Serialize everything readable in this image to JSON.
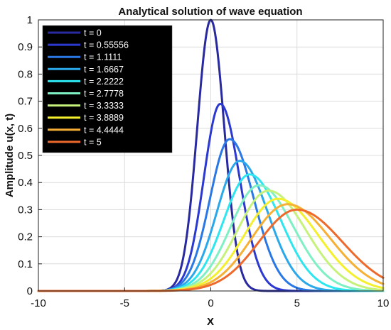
{
  "chart_data": {
    "type": "line",
    "title": "Analytical solution of wave equation",
    "xlabel": "X",
    "ylabel": "Amplitude u(x, t)",
    "xlim": [
      -10,
      10
    ],
    "ylim": [
      0,
      1
    ],
    "xticks": [
      "-10",
      "-5",
      "0",
      "5",
      "10"
    ],
    "yticks": [
      "0",
      "0.1",
      "0.2",
      "0.3",
      "0.4",
      "0.5",
      "0.6",
      "0.7",
      "0.8",
      "0.9",
      "1"
    ],
    "grid": true,
    "legend_position": "top-left",
    "legend_background": "#000000",
    "series": [
      {
        "name": "t = 0",
        "color": "#2a2aa0",
        "peak_x": 0.0,
        "peak_y": 1.0,
        "spread_left": 0.78,
        "spread_right": 0.78
      },
      {
        "name": "t = 0.55556",
        "color": "#2b39d0",
        "peak_x": 0.55,
        "peak_y": 0.69,
        "spread_left": 0.95,
        "spread_right": 1.12
      },
      {
        "name": "t = 1.1111",
        "color": "#2a78e6",
        "peak_x": 1.1,
        "peak_y": 0.56,
        "spread_left": 1.15,
        "spread_right": 1.4
      },
      {
        "name": "t = 1.6667",
        "color": "#2aa8ea",
        "peak_x": 1.68,
        "peak_y": 0.48,
        "spread_left": 1.33,
        "spread_right": 1.62
      },
      {
        "name": "t = 2.2222",
        "color": "#2ee6f0",
        "peak_x": 2.25,
        "peak_y": 0.43,
        "spread_left": 1.5,
        "spread_right": 1.82
      },
      {
        "name": "t = 2.7778",
        "color": "#7ef0c4",
        "peak_x": 2.8,
        "peak_y": 0.39,
        "spread_left": 1.65,
        "spread_right": 2.0
      },
      {
        "name": "t = 3.3333",
        "color": "#c6f27c",
        "peak_x": 3.35,
        "peak_y": 0.37,
        "spread_left": 1.8,
        "spread_right": 2.17
      },
      {
        "name": "t = 3.8889",
        "color": "#f4f02e",
        "peak_x": 3.9,
        "peak_y": 0.34,
        "spread_left": 1.95,
        "spread_right": 2.33
      },
      {
        "name": "t = 4.4444",
        "color": "#f6b035",
        "peak_x": 4.45,
        "peak_y": 0.32,
        "spread_left": 2.08,
        "spread_right": 2.48
      },
      {
        "name": "t = 5",
        "color": "#ee6a2c",
        "peak_x": 5.0,
        "peak_y": 0.3,
        "spread_left": 2.2,
        "spread_right": 2.62
      }
    ]
  }
}
